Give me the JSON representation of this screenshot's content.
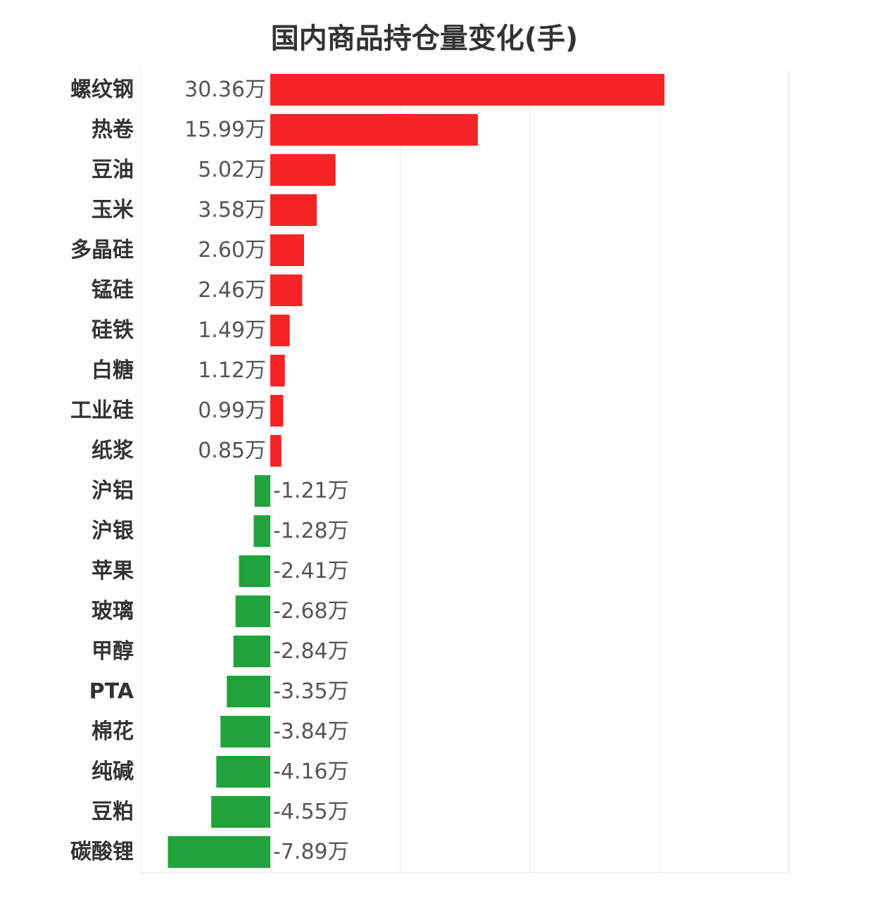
{
  "title": "国内商品持仓量变化(手)",
  "chart_data": {
    "type": "bar",
    "orientation": "horizontal",
    "title": "国内商品持仓量变化(手)",
    "unit_suffix": "万",
    "xlim": [
      -10,
      40
    ],
    "grid": true,
    "legend": "none",
    "positive_color": "#f52525",
    "negative_color": "#20a33c",
    "categories": [
      "螺纹钢",
      "热卷",
      "豆油",
      "玉米",
      "多晶硅",
      "锰硅",
      "硅铁",
      "白糖",
      "工业硅",
      "纸浆",
      "沪铝",
      "沪银",
      "苹果",
      "玻璃",
      "甲醇",
      "PTA",
      "棉花",
      "纯碱",
      "豆粕",
      "碳酸锂"
    ],
    "values": [
      30.36,
      15.99,
      5.02,
      3.58,
      2.6,
      2.46,
      1.49,
      1.12,
      0.99,
      0.85,
      -1.21,
      -1.28,
      -2.41,
      -2.68,
      -2.84,
      -3.35,
      -3.84,
      -4.16,
      -4.55,
      -7.89
    ],
    "value_labels": [
      "30.36万",
      "15.99万",
      "5.02万",
      "3.58万",
      "2.60万",
      "2.46万",
      "1.49万",
      "1.12万",
      "0.99万",
      "0.85万",
      "-1.21万",
      "-1.28万",
      "-2.41万",
      "-2.68万",
      "-2.84万",
      "-3.35万",
      "-3.84万",
      "-4.16万",
      "-4.55万",
      "-7.89万"
    ]
  }
}
